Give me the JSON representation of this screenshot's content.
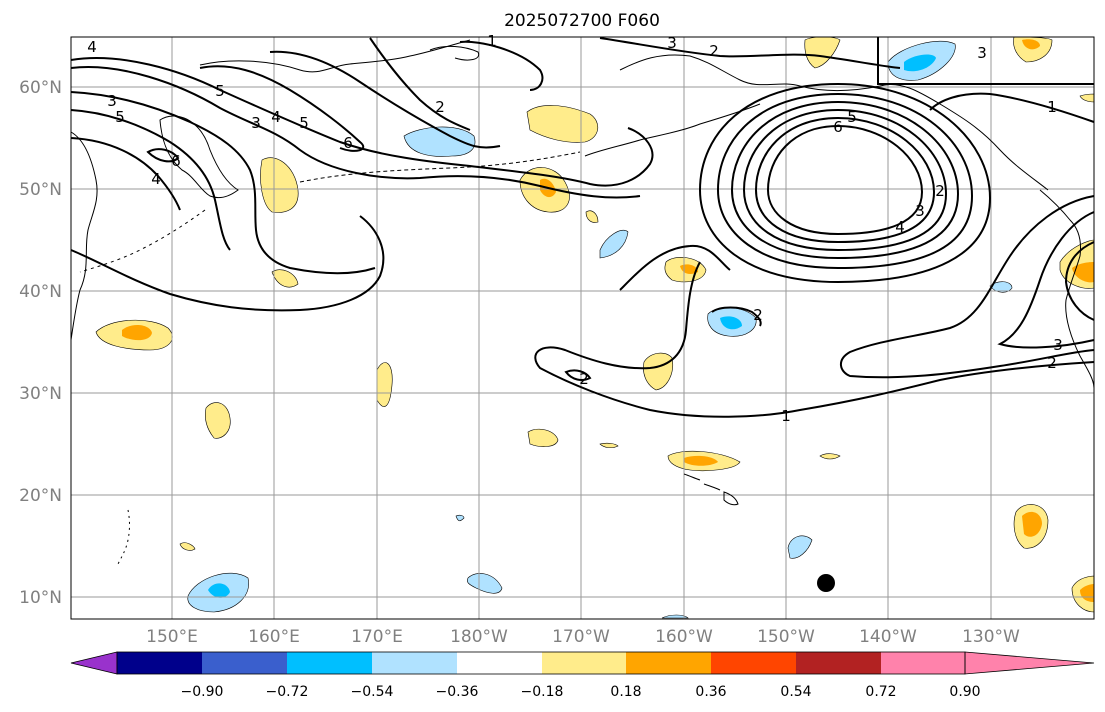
{
  "title": "2025072700 F060",
  "map": {
    "lat_labels": [
      "60°N",
      "50°N",
      "40°N",
      "30°N",
      "20°N",
      "10°N"
    ],
    "lon_labels": [
      "150°E",
      "160°E",
      "170°E",
      "180°W",
      "170°W",
      "160°W",
      "150°W",
      "140°W",
      "130°W"
    ],
    "contour_labels": [
      "4",
      "1",
      "2",
      "3",
      "3",
      "5",
      "6",
      "4",
      "3",
      "4",
      "5",
      "2",
      "5",
      "6",
      "1",
      "2",
      "3",
      "4",
      "6",
      "5",
      "2",
      "3",
      "2",
      "2",
      "1",
      "3"
    ],
    "marker": "storm-center-dot"
  },
  "colorbar": {
    "tick_labels": [
      "−0.90",
      "−0.72",
      "−0.54",
      "−0.36",
      "−0.18",
      "0.18",
      "0.36",
      "0.54",
      "0.72",
      "0.90"
    ],
    "colors": [
      "#9932cc",
      "#00008b",
      "#3a5fcd",
      "#00bfff",
      "#b0e2ff",
      "#ffffff",
      "#ffec8b",
      "#ffa500",
      "#ff4500",
      "#b22222",
      "#ff82ab"
    ]
  },
  "colors": {
    "light_yellow": "#ffec8b",
    "orange": "#ffa500",
    "light_blue": "#b0e2ff",
    "cyan": "#00bfff"
  }
}
